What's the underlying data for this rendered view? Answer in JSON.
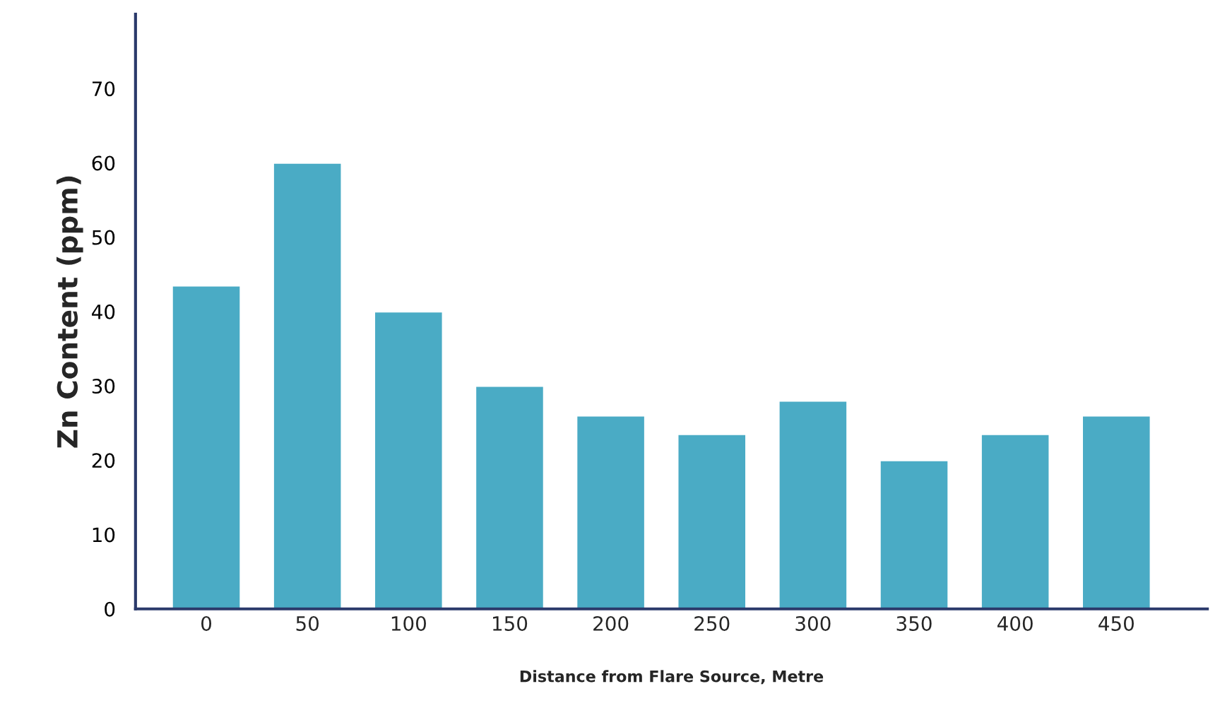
{
  "chart_data": {
    "type": "bar",
    "xlabel": "Distance from Flare Source, Metre",
    "ylabel": "Zn Content (ppm)",
    "categories": [
      "0",
      "50",
      "100",
      "150",
      "200",
      "250",
      "300",
      "350",
      "400",
      "450"
    ],
    "values": [
      43.5,
      60,
      40,
      30,
      26,
      23.5,
      28,
      20,
      23.5,
      26
    ],
    "color": "#4aabc5",
    "ylim": [
      0,
      80
    ],
    "yticks": [
      0,
      10,
      20,
      30,
      40,
      50,
      60,
      70
    ],
    "grid": false
  }
}
